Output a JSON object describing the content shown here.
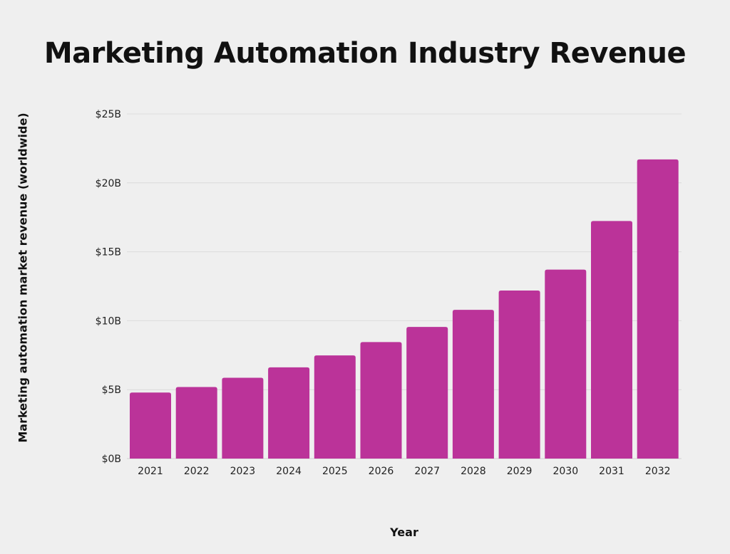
{
  "chart_data": {
    "type": "bar",
    "title": "Marketing Automation Industry Revenue",
    "xlabel": "Year",
    "ylabel": "Marketing automation market revenue (worldwide)",
    "categories": [
      "2021",
      "2022",
      "2023",
      "2024",
      "2025",
      "2026",
      "2027",
      "2028",
      "2029",
      "2030",
      "2031",
      "2032"
    ],
    "values": [
      4.79,
      5.19,
      5.86,
      6.62,
      7.48,
      8.45,
      9.55,
      10.79,
      12.19,
      13.71,
      17.23,
      21.7
    ],
    "unit": "billion USD",
    "ylim": [
      0,
      25
    ],
    "yticks": [
      0,
      5,
      10,
      15,
      20,
      25
    ],
    "ytick_labels": [
      "$0B",
      "$5B",
      "$10B",
      "$15B",
      "$20B",
      "$25B"
    ],
    "grid": "horizontal",
    "bar_color": "#bb3399"
  }
}
